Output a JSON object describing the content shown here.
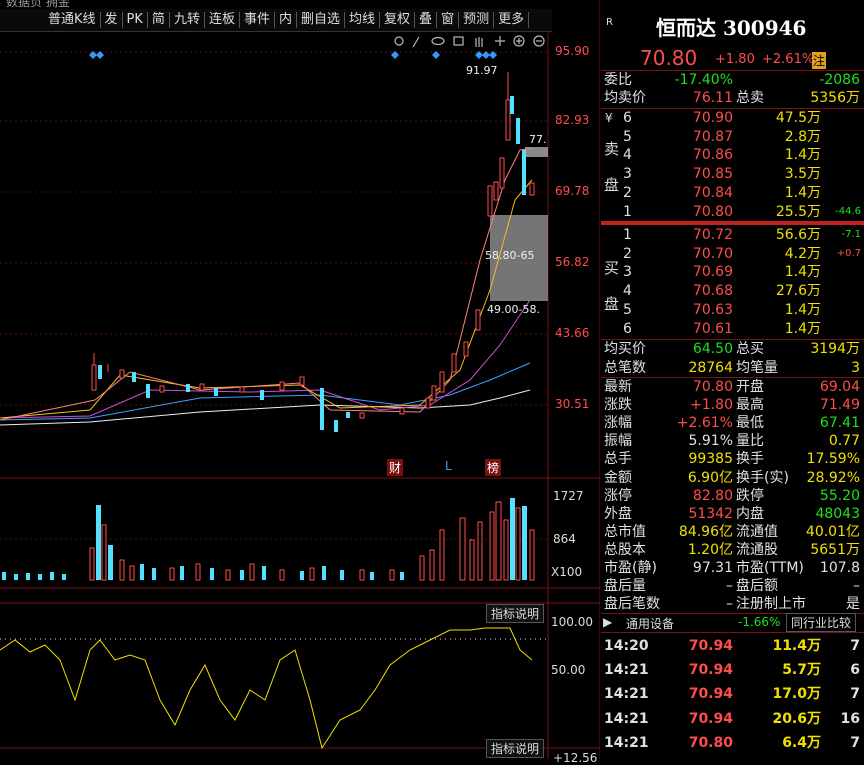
{
  "topbar": {
    "cut_text": "数据负 拥金",
    "items": [
      "普通K线",
      "发",
      "PK",
      "简",
      "九转",
      "连板",
      "事件",
      "内",
      "删自选",
      "均线",
      "复权",
      "叠",
      "窗",
      "预测",
      "更多"
    ]
  },
  "kline": {
    "price_axis": [
      "95.90",
      "82.93",
      "69.78",
      "56.82",
      "43.66",
      "30.51"
    ],
    "annotations": {
      "high": "91.97",
      "ma_label": "77.",
      "zone1": "58.80-65",
      "zone2": "49.00-58."
    },
    "events": [
      "财",
      "L",
      "榜"
    ],
    "volume_axis": [
      "1727",
      "864",
      "X100"
    ],
    "indicator_button": "指标说明",
    "indicator_axis": [
      "100.00",
      "50.00"
    ],
    "indicator_button2": "指标说明",
    "bottom_axis": "+12.56"
  },
  "quote": {
    "market": "R",
    "name": "恒而达 300946",
    "price": "70.80",
    "change": "+1.80",
    "pct": "+2.61%",
    "tag": "注",
    "ratio": [
      "委比",
      "-17.40%",
      "-2086"
    ],
    "avg_sell": [
      "均卖价",
      "76.11",
      "总卖",
      "5356万"
    ],
    "sell_side": [
      "¥",
      "卖",
      "盘"
    ],
    "sell": [
      [
        "6",
        "70.90",
        "47.5万"
      ],
      [
        "5",
        "70.87",
        "2.8万"
      ],
      [
        "4",
        "70.86",
        "1.4万"
      ],
      [
        "3",
        "70.85",
        "3.5万"
      ],
      [
        "2",
        "70.84",
        "1.4万"
      ],
      [
        "1",
        "70.80",
        "25.5万",
        "-44.6"
      ]
    ],
    "buy_side": [
      "买",
      "盘"
    ],
    "buy": [
      [
        "1",
        "70.72",
        "56.6万",
        "-7.1"
      ],
      [
        "2",
        "70.70",
        "4.2万",
        "+0.7"
      ],
      [
        "3",
        "70.69",
        "1.4万"
      ],
      [
        "4",
        "70.68",
        "27.6万"
      ],
      [
        "5",
        "70.63",
        "1.4万"
      ],
      [
        "6",
        "70.61",
        "1.4万"
      ]
    ],
    "avg_buy": [
      "均买价",
      "64.50",
      "总买",
      "3194万"
    ],
    "trades": [
      "总笔数",
      "28764",
      "均笔量",
      "3"
    ],
    "stats": [
      [
        "最新",
        "70.80",
        "开盘",
        "69.04"
      ],
      [
        "涨跌",
        "+1.80",
        "最高",
        "71.49"
      ],
      [
        "涨幅",
        "+2.61%",
        "最低",
        "67.41"
      ],
      [
        "振幅",
        "5.91%",
        "量比",
        "0.77"
      ],
      [
        "总手",
        "99385",
        "换手",
        "17.59%"
      ],
      [
        "金额",
        "6.90亿",
        "换手(实)",
        "28.92%"
      ],
      [
        "涨停",
        "82.80",
        "跌停",
        "55.20"
      ],
      [
        "外盘",
        "51342",
        "内盘",
        "48043"
      ],
      [
        "总市值",
        "84.96亿",
        "流通值",
        "40.01亿"
      ],
      [
        "总股本",
        "1.20亿",
        "流通股",
        "5651万"
      ],
      [
        "市盈(静)",
        "97.31",
        "市盈(TTM)",
        "107.8"
      ],
      [
        "盘后量",
        "–",
        "盘后额",
        "–"
      ],
      [
        "盘后笔数",
        "–",
        "注册制上市",
        "是"
      ]
    ],
    "industry": [
      "通用设备",
      "-1.66%",
      "同行业比较"
    ],
    "ticks": [
      [
        "14:20",
        "70.94",
        "11.4万",
        "7"
      ],
      [
        "14:21",
        "70.94",
        "5.7万",
        "6"
      ],
      [
        "14:21",
        "70.94",
        "17.0万",
        "7"
      ],
      [
        "14:21",
        "70.94",
        "20.6万",
        "16"
      ],
      [
        "14:21",
        "70.80",
        "6.4万",
        "7"
      ]
    ]
  }
}
